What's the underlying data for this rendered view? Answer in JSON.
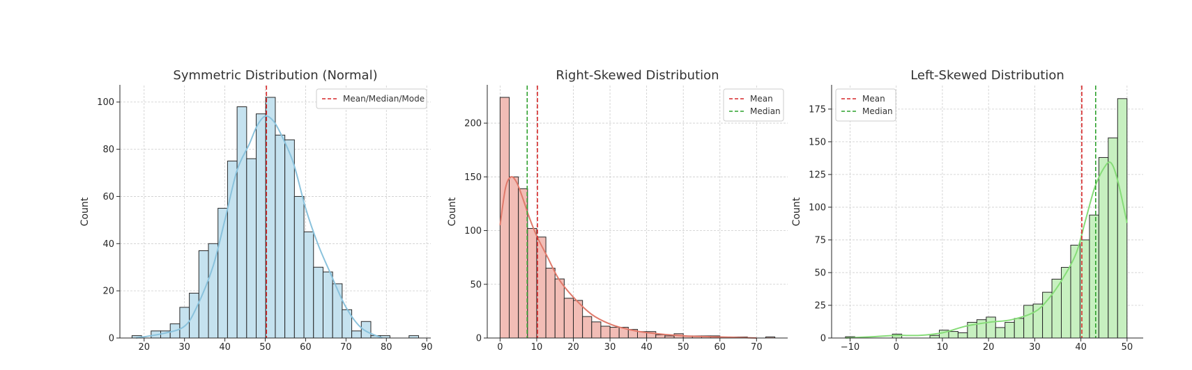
{
  "chart_data": [
    {
      "type": "bar",
      "title": "Symmetric Distribution (Normal)",
      "xlabel": "",
      "ylabel": "Count",
      "xlim": [
        14,
        91
      ],
      "ylim": [
        0,
        107
      ],
      "xticks": [
        20,
        30,
        40,
        50,
        60,
        70,
        80,
        90
      ],
      "yticks": [
        0,
        20,
        40,
        60,
        80,
        100
      ],
      "grid": true,
      "legend_position": "top-right",
      "bar_color": "#c5e2ef",
      "kde_color": "#8ac2dc",
      "bins": {
        "start": 17.0,
        "width": 2.366,
        "counts": [
          1,
          0,
          3,
          3,
          6,
          13,
          19,
          37,
          40,
          55,
          75,
          98,
          76,
          95,
          102,
          86,
          84,
          60,
          45,
          30,
          28,
          23,
          12,
          3,
          7,
          1,
          1,
          0,
          0,
          1
        ]
      },
      "kde": {
        "x": [
          18,
          25,
          30,
          33,
          37,
          40,
          43,
          46,
          48,
          50,
          52,
          54,
          57,
          60,
          63,
          66,
          70,
          74,
          79
        ],
        "y": [
          0,
          2,
          5,
          13,
          30,
          50,
          71,
          82,
          90,
          94,
          92,
          86,
          74,
          55,
          40,
          28,
          13,
          4,
          0
        ]
      },
      "lines": [
        {
          "label": "Mean/Median/Mode",
          "x": 50.3,
          "color": "#d62728"
        }
      ]
    },
    {
      "type": "bar",
      "title": "Right-Skewed Distribution",
      "xlabel": "",
      "ylabel": "Count",
      "xlim": [
        -3.5,
        78.5
      ],
      "ylim": [
        0,
        235
      ],
      "xticks": [
        0,
        10,
        20,
        30,
        40,
        50,
        60,
        70
      ],
      "yticks": [
        0,
        50,
        100,
        150,
        200
      ],
      "grid": true,
      "legend_position": "top-right",
      "bar_color": "#f2bdb6",
      "kde_color": "#e07a6b",
      "bins": {
        "start": 0,
        "width": 2.5,
        "counts": [
          224,
          150,
          139,
          102,
          94,
          65,
          55,
          37,
          35,
          20,
          15,
          11,
          10,
          10,
          8,
          6,
          6,
          3,
          2,
          4,
          2,
          2,
          2,
          2,
          0,
          1,
          1,
          0,
          0,
          1
        ]
      },
      "kde": {
        "x": [
          0,
          1.5,
          3,
          4.5,
          6,
          8,
          10,
          13,
          16,
          20,
          25,
          30,
          35,
          40,
          50,
          60,
          70
        ],
        "y": [
          105,
          140,
          150,
          145,
          132,
          112,
          95,
          75,
          55,
          38,
          22,
          13,
          8,
          5,
          2,
          1,
          0
        ]
      },
      "lines": [
        {
          "label": "Mean",
          "x": 10.2,
          "color": "#d62728"
        },
        {
          "label": "Median",
          "x": 7.4,
          "color": "#2ca02c"
        }
      ]
    },
    {
      "type": "bar",
      "title": "Left-Skewed Distribution",
      "xlabel": "",
      "ylabel": "Count",
      "xlim": [
        -14,
        53.5
      ],
      "ylim": [
        0,
        193
      ],
      "xticks": [
        -10,
        0,
        10,
        20,
        30,
        40,
        50
      ],
      "yticks": [
        0,
        25,
        50,
        75,
        100,
        125,
        150,
        175
      ],
      "xtick_labels": [
        "−10",
        "0",
        "10",
        "20",
        "30",
        "40",
        "50"
      ],
      "grid": true,
      "legend_position": "top-left",
      "bar_color": "#c7f0c0",
      "kde_color": "#86dc78",
      "bins": {
        "start": -11,
        "width": 2.033,
        "counts": [
          1,
          0,
          0,
          0,
          0,
          3,
          0,
          0,
          0,
          2,
          6,
          5,
          4,
          12,
          14,
          16,
          8,
          12,
          15,
          25,
          26,
          35,
          45,
          54,
          71,
          75,
          94,
          138,
          153,
          183
        ]
      },
      "kde": {
        "x": [
          -11,
          -5,
          0,
          5,
          10,
          15,
          20,
          25,
          30,
          33,
          36,
          39,
          41,
          43,
          45,
          46.5,
          48,
          50
        ],
        "y": [
          0,
          1,
          2,
          2,
          4,
          9,
          12,
          14,
          20,
          30,
          45,
          65,
          90,
          115,
          130,
          134,
          120,
          88
        ]
      },
      "lines": [
        {
          "label": "Mean",
          "x": 40.2,
          "color": "#d62728"
        },
        {
          "label": "Median",
          "x": 43.2,
          "color": "#2ca02c"
        }
      ]
    }
  ]
}
